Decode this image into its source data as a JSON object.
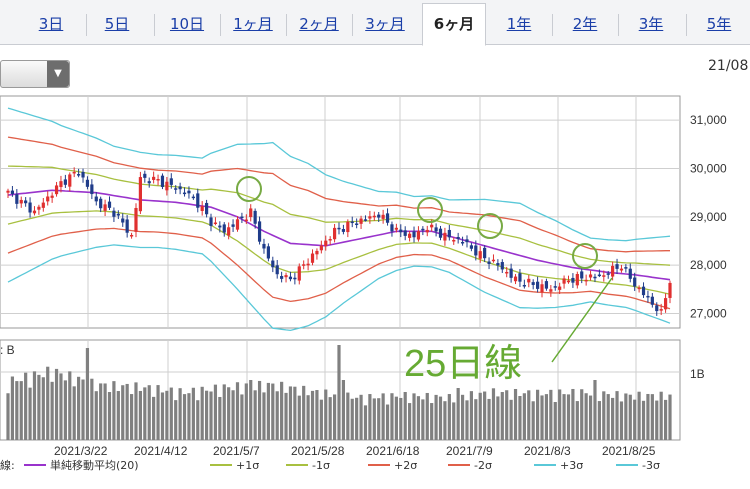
{
  "tabs": [
    {
      "label": "3日",
      "active": false
    },
    {
      "label": "5日",
      "active": false
    },
    {
      "label": "10日",
      "active": false
    },
    {
      "label": "1ヶ月",
      "active": false
    },
    {
      "label": "2ヶ月",
      "active": false
    },
    {
      "label": "3ヶ月",
      "active": false
    },
    {
      "label": "6ヶ月",
      "active": true
    },
    {
      "label": "1年",
      "active": false
    },
    {
      "label": "2年",
      "active": false
    },
    {
      "label": "3年",
      "active": false
    },
    {
      "label": "5年",
      "active": false
    }
  ],
  "header_date": "21/08",
  "chart_data": {
    "type": "candlestick",
    "y_ticks": [
      "31,000",
      "30,000",
      "29,000",
      "28,000",
      "27,000"
    ],
    "ylim": [
      26700,
      31500
    ],
    "x_ticks": [
      "2021/3/22",
      "2021/4/12",
      "2021/5/7",
      "2021/5/28",
      "2021/6/18",
      "2021/7/9",
      "2021/8/3",
      "2021/8/25"
    ],
    "volume_label": ": B",
    "volume_tick": "1B",
    "annotation": "25日線",
    "legend_prefix": "線:",
    "legend": [
      {
        "label": "単純移動平均(20)",
        "color": "#9933cc"
      },
      {
        "label": "+1σ",
        "color": "#a8c040"
      },
      {
        "label": "-1σ",
        "color": "#a8c040"
      },
      {
        "label": "+2σ",
        "color": "#e0604a"
      },
      {
        "label": "-2σ",
        "color": "#e0604a"
      },
      {
        "label": "+3σ",
        "color": "#5ac8d8"
      },
      {
        "label": "-3σ",
        "color": "#5ac8d8"
      }
    ],
    "colors": {
      "up": "#e03030",
      "down": "#1f3c8a",
      "volume": "#808080",
      "circle": "#77aa44",
      "grid": "#cfcfcf"
    },
    "series": {
      "close_anchors": [
        [
          0,
          29500
        ],
        [
          6,
          29100
        ],
        [
          12,
          29700
        ],
        [
          16,
          29950
        ],
        [
          20,
          29300
        ],
        [
          24,
          29100
        ],
        [
          28,
          28600
        ],
        [
          30,
          29800
        ],
        [
          34,
          29750
        ],
        [
          38,
          29600
        ],
        [
          42,
          29400
        ],
        [
          46,
          28900
        ],
        [
          49,
          28700
        ],
        [
          52,
          28900
        ],
        [
          55,
          29100
        ],
        [
          58,
          28300
        ],
        [
          61,
          27800
        ],
        [
          64,
          27700
        ],
        [
          67,
          28000
        ],
        [
          70,
          28300
        ],
        [
          74,
          28700
        ],
        [
          79,
          28900
        ],
        [
          84,
          29050
        ],
        [
          88,
          28700
        ],
        [
          92,
          28600
        ],
        [
          95,
          28800
        ],
        [
          99,
          28600
        ],
        [
          103,
          28500
        ],
        [
          107,
          28200
        ],
        [
          111,
          28000
        ],
        [
          115,
          27700
        ],
        [
          119,
          27600
        ],
        [
          123,
          27500
        ],
        [
          127,
          27700
        ],
        [
          131,
          27750
        ],
        [
          135,
          27800
        ],
        [
          139,
          28000
        ],
        [
          142,
          27600
        ],
        [
          145,
          27300
        ],
        [
          148,
          27000
        ],
        [
          150,
          27700
        ]
      ],
      "mid_anchors": [
        [
          0,
          29450
        ],
        [
          10,
          29550
        ],
        [
          20,
          29500
        ],
        [
          30,
          29350
        ],
        [
          38,
          29300
        ],
        [
          46,
          29200
        ],
        [
          52,
          29000
        ],
        [
          58,
          28700
        ],
        [
          64,
          28450
        ],
        [
          72,
          28400
        ],
        [
          80,
          28550
        ],
        [
          88,
          28700
        ],
        [
          96,
          28700
        ],
        [
          104,
          28500
        ],
        [
          112,
          28300
        ],
        [
          120,
          28100
        ],
        [
          128,
          27950
        ],
        [
          136,
          27850
        ],
        [
          142,
          27800
        ],
        [
          150,
          27700
        ]
      ],
      "sigma_anchors": [
        [
          0,
          600
        ],
        [
          12,
          450
        ],
        [
          24,
          340
        ],
        [
          34,
          320
        ],
        [
          44,
          330
        ],
        [
          52,
          500
        ],
        [
          60,
          640
        ],
        [
          68,
          560
        ],
        [
          76,
          420
        ],
        [
          84,
          300
        ],
        [
          92,
          240
        ],
        [
          100,
          250
        ],
        [
          108,
          320
        ],
        [
          116,
          360
        ],
        [
          124,
          300
        ],
        [
          132,
          220
        ],
        [
          140,
          230
        ],
        [
          150,
          300
        ]
      ],
      "volume_anchors": [
        [
          0,
          0.55
        ],
        [
          10,
          0.65
        ],
        [
          20,
          0.52
        ],
        [
          30,
          0.5
        ],
        [
          40,
          0.45
        ],
        [
          50,
          0.5
        ],
        [
          60,
          0.52
        ],
        [
          70,
          0.45
        ],
        [
          80,
          0.4
        ],
        [
          90,
          0.42
        ],
        [
          100,
          0.4
        ],
        [
          110,
          0.45
        ],
        [
          120,
          0.44
        ],
        [
          130,
          0.45
        ],
        [
          140,
          0.42
        ],
        [
          150,
          0.42
        ]
      ],
      "volume_spikes": [
        [
          18,
          0.92
        ],
        [
          55,
          0.6
        ],
        [
          75,
          0.95
        ],
        [
          76,
          0.6
        ],
        [
          102,
          0.52
        ],
        [
          133,
          0.6
        ]
      ]
    }
  }
}
